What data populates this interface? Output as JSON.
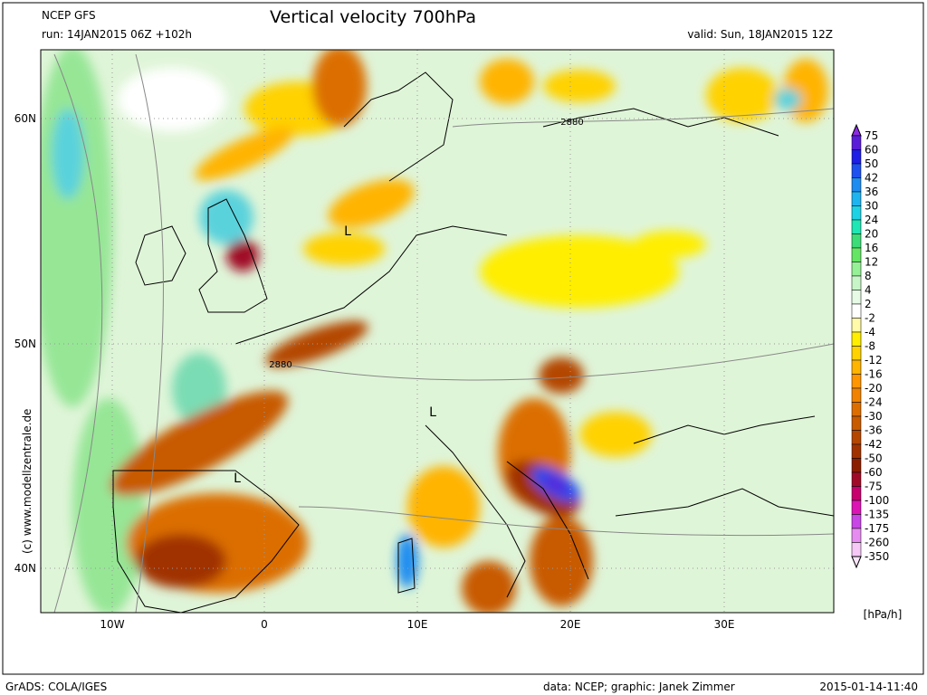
{
  "header": {
    "source": "NCEP GFS",
    "run": "run: 14JAN2015 06Z +102h",
    "title": "Vertical velocity 700hPa",
    "valid": "valid: Sun, 18JAN2015 12Z"
  },
  "map": {
    "lat_labels": [
      "60N",
      "50N",
      "40N"
    ],
    "lon_labels": [
      "10W",
      "0",
      "10E",
      "20E",
      "30E"
    ],
    "annotations": [
      "L",
      "L",
      "L",
      "2880",
      "2880"
    ],
    "watermark": "(c) www.modellzentrale.de"
  },
  "legend": {
    "levels": [
      "75",
      "60",
      "50",
      "42",
      "36",
      "30",
      "24",
      "20",
      "16",
      "12",
      "8",
      "4",
      "2",
      "-2",
      "-4",
      "-8",
      "-12",
      "-16",
      "-20",
      "-24",
      "-30",
      "-36",
      "-42",
      "-50",
      "-60",
      "-75",
      "-100",
      "-135",
      "-175",
      "-260",
      "-350"
    ],
    "colors": [
      "#8a2be2",
      "#5a1ed8",
      "#1e1ee6",
      "#1e50f0",
      "#1e8cf0",
      "#1eb4f0",
      "#1ed2e6",
      "#1ee6b4",
      "#3cdc78",
      "#64e664",
      "#96f096",
      "#c8f5c8",
      "#e6fae6",
      "#ffffff",
      "#fffaaa",
      "#ffee00",
      "#ffd200",
      "#ffb400",
      "#ff9600",
      "#f08200",
      "#dc6e00",
      "#c85a00",
      "#b44600",
      "#a03200",
      "#8c1e00",
      "#a00a28",
      "#c8006e",
      "#dc14b4",
      "#c846e6",
      "#e68cf0",
      "#f5c8f5",
      "#fae6fa"
    ],
    "unit": "[hPa/h]"
  },
  "footer": {
    "left": "GrADS: COLA/IGES",
    "center": "data: NCEP; graphic: Janek Zimmer",
    "right": "2015-01-14-11:40"
  }
}
